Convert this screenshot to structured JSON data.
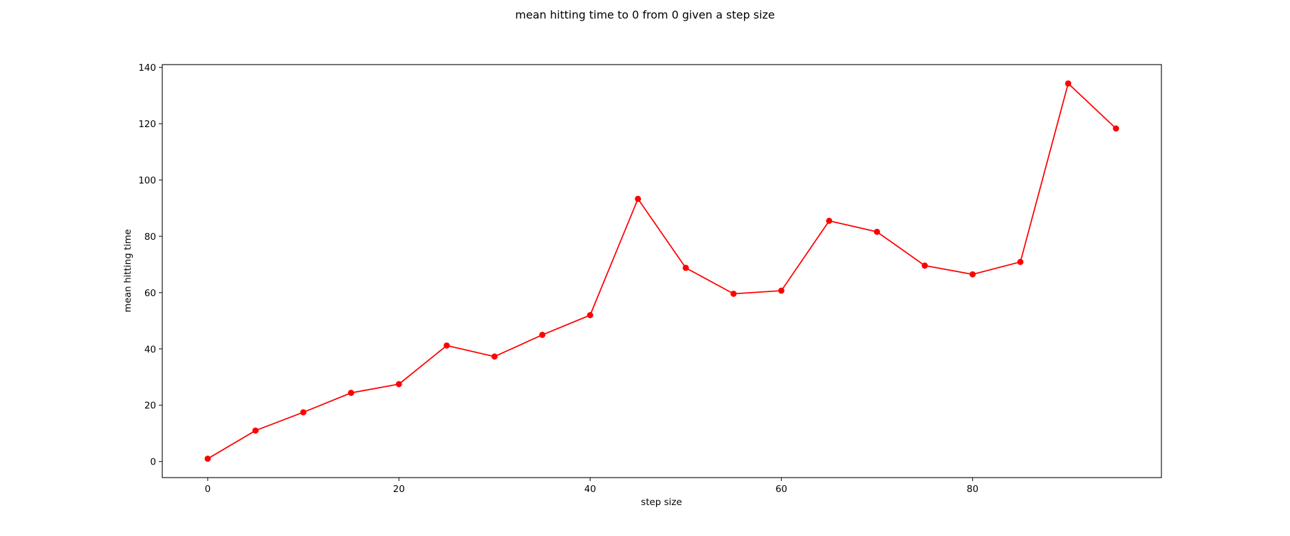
{
  "chart_data": {
    "type": "line",
    "title": "mean hitting time to 0 from 0 given a step size",
    "xlabel": "step size",
    "ylabel": "mean hitting time",
    "x": [
      0,
      5,
      10,
      15,
      20,
      25,
      30,
      35,
      40,
      45,
      50,
      55,
      60,
      65,
      70,
      75,
      80,
      85,
      90,
      95
    ],
    "series": [
      {
        "values": [
          1,
          11,
          17.5,
          24.4,
          27.5,
          41.2,
          37.3,
          45,
          52,
          93.3,
          68.8,
          59.6,
          60.7,
          85.5,
          81.6,
          69.6,
          66.5,
          70.9,
          134.3,
          118.3
        ],
        "color": "#ff0000",
        "marker": "circle"
      }
    ],
    "xlim": [
      -4.75,
      99.75
    ],
    "ylim": [
      -5.7,
      141
    ],
    "xticks": [
      0,
      20,
      40,
      60,
      80
    ],
    "yticks": [
      0,
      20,
      40,
      60,
      80,
      100,
      120,
      140
    ],
    "grid": false,
    "legend": "none"
  }
}
